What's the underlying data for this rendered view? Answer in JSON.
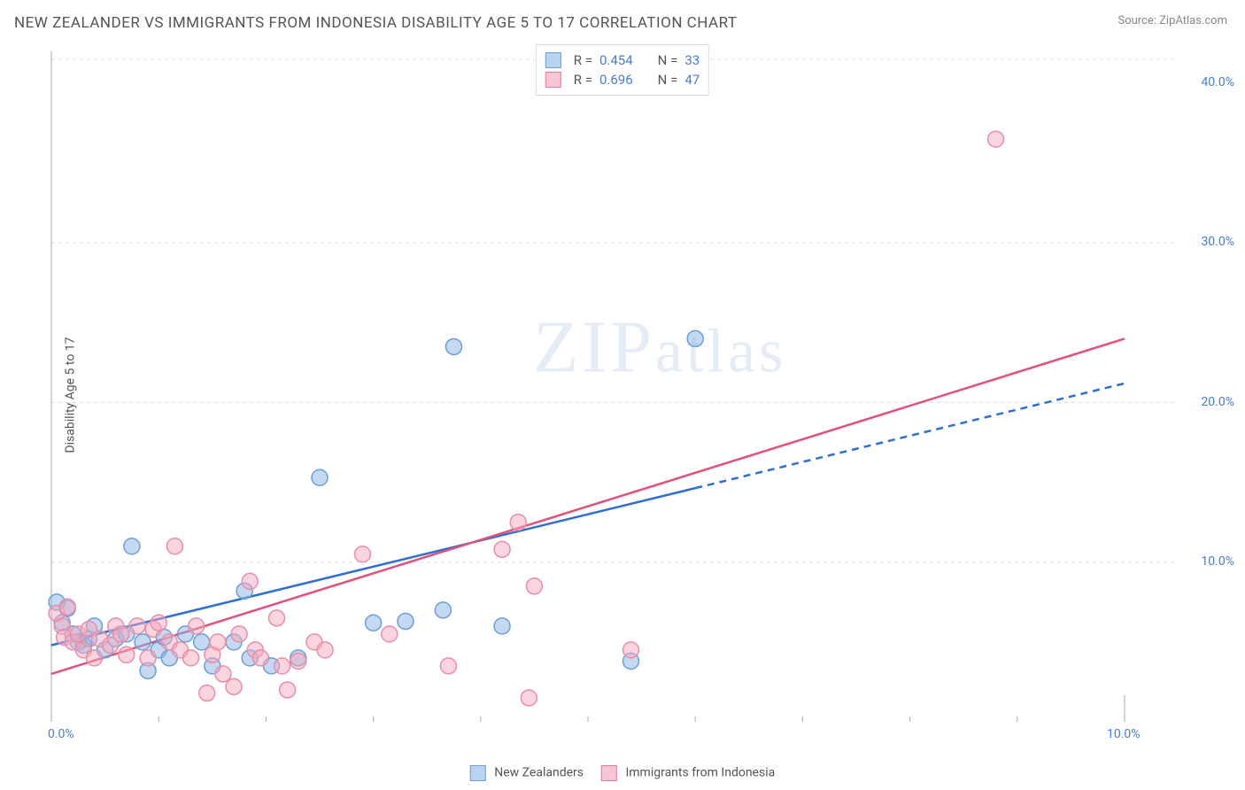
{
  "title": "NEW ZEALANDER VS IMMIGRANTS FROM INDONESIA DISABILITY AGE 5 TO 17 CORRELATION CHART",
  "source": "Source: ZipAtlas.com",
  "ylabel": "Disability Age 5 to 17",
  "watermark": "ZIPatlas",
  "chart": {
    "type": "scatter-with-regression",
    "background_color": "#ffffff",
    "grid_color": "#e0e0e0",
    "axis_color": "#aaaaaa",
    "xlim": [
      0,
      10
    ],
    "ylim": [
      0,
      42
    ],
    "xtick_labels": [
      "0.0%",
      "10.0%"
    ],
    "xtick_positions": [
      0,
      10
    ],
    "ytick_labels": [
      "10.0%",
      "20.0%",
      "30.0%",
      "40.0%"
    ],
    "ytick_positions": [
      10,
      20,
      30,
      40
    ],
    "grid_y_positions": [
      10,
      20,
      30,
      41.5
    ],
    "point_radius": 9,
    "point_stroke_width": 1.5,
    "series": [
      {
        "key": "nz",
        "label": "New Zealanders",
        "fill_color": "rgba(140, 180, 230, 0.5)",
        "stroke_color": "#6a9fd8",
        "swatch_fill": "#b9d4f0",
        "swatch_border": "#6a9fd8",
        "line_color": "#2f6fd0",
        "line_width": 2.5,
        "line_solid_end_x": 6.0,
        "line_dashed": true,
        "regression": {
          "x1": 0,
          "y1": 4.8,
          "x2": 10,
          "y2": 21.2
        },
        "R_label": "R =",
        "R": "0.454",
        "N_label": "N =",
        "N": "33",
        "points": [
          {
            "x": 0.05,
            "y": 7.5
          },
          {
            "x": 0.1,
            "y": 6.2
          },
          {
            "x": 0.15,
            "y": 7.1
          },
          {
            "x": 0.2,
            "y": 5.5
          },
          {
            "x": 0.25,
            "y": 5.0
          },
          {
            "x": 0.3,
            "y": 4.8
          },
          {
            "x": 0.35,
            "y": 5.2
          },
          {
            "x": 0.4,
            "y": 6.0
          },
          {
            "x": 0.5,
            "y": 4.5
          },
          {
            "x": 0.6,
            "y": 5.2
          },
          {
            "x": 0.7,
            "y": 5.5
          },
          {
            "x": 0.75,
            "y": 11.0
          },
          {
            "x": 0.85,
            "y": 5.0
          },
          {
            "x": 0.9,
            "y": 3.2
          },
          {
            "x": 1.0,
            "y": 4.5
          },
          {
            "x": 1.05,
            "y": 5.3
          },
          {
            "x": 1.1,
            "y": 4.0
          },
          {
            "x": 1.25,
            "y": 5.5
          },
          {
            "x": 1.4,
            "y": 5.0
          },
          {
            "x": 1.5,
            "y": 3.5
          },
          {
            "x": 1.7,
            "y": 5.0
          },
          {
            "x": 1.8,
            "y": 8.2
          },
          {
            "x": 1.85,
            "y": 4.0
          },
          {
            "x": 2.05,
            "y": 3.5
          },
          {
            "x": 2.3,
            "y": 4.0
          },
          {
            "x": 2.5,
            "y": 15.3
          },
          {
            "x": 3.0,
            "y": 6.2
          },
          {
            "x": 3.3,
            "y": 6.3
          },
          {
            "x": 3.65,
            "y": 7.0
          },
          {
            "x": 3.75,
            "y": 23.5
          },
          {
            "x": 4.2,
            "y": 6.0
          },
          {
            "x": 5.4,
            "y": 3.8
          },
          {
            "x": 6.0,
            "y": 24.0
          }
        ]
      },
      {
        "key": "indo",
        "label": "Immigrants from Indonesia",
        "fill_color": "rgba(245, 170, 190, 0.5)",
        "stroke_color": "#e78fa8",
        "swatch_fill": "#f7c5d3",
        "swatch_border": "#e57a98",
        "line_color": "#e0527a",
        "line_width": 2.5,
        "line_solid_end_x": 10,
        "line_dashed": false,
        "regression": {
          "x1": 0,
          "y1": 3.0,
          "x2": 10,
          "y2": 24.0
        },
        "R_label": "R =",
        "R": "0.696",
        "N_label": "N =",
        "N": "47",
        "points": [
          {
            "x": 0.05,
            "y": 6.8
          },
          {
            "x": 0.1,
            "y": 6.0
          },
          {
            "x": 0.12,
            "y": 5.3
          },
          {
            "x": 0.15,
            "y": 7.2
          },
          {
            "x": 0.2,
            "y": 5.0
          },
          {
            "x": 0.25,
            "y": 5.5
          },
          {
            "x": 0.3,
            "y": 4.5
          },
          {
            "x": 0.35,
            "y": 5.8
          },
          {
            "x": 0.4,
            "y": 4.0
          },
          {
            "x": 0.45,
            "y": 5.2
          },
          {
            "x": 0.55,
            "y": 4.8
          },
          {
            "x": 0.6,
            "y": 6.0
          },
          {
            "x": 0.65,
            "y": 5.5
          },
          {
            "x": 0.7,
            "y": 4.2
          },
          {
            "x": 0.8,
            "y": 6.0
          },
          {
            "x": 0.9,
            "y": 4.0
          },
          {
            "x": 0.95,
            "y": 5.8
          },
          {
            "x": 1.0,
            "y": 6.2
          },
          {
            "x": 1.1,
            "y": 5.0
          },
          {
            "x": 1.15,
            "y": 11.0
          },
          {
            "x": 1.2,
            "y": 4.5
          },
          {
            "x": 1.3,
            "y": 4.0
          },
          {
            "x": 1.35,
            "y": 6.0
          },
          {
            "x": 1.45,
            "y": 1.8
          },
          {
            "x": 1.5,
            "y": 4.2
          },
          {
            "x": 1.55,
            "y": 5.0
          },
          {
            "x": 1.6,
            "y": 3.0
          },
          {
            "x": 1.7,
            "y": 2.2
          },
          {
            "x": 1.75,
            "y": 5.5
          },
          {
            "x": 1.85,
            "y": 8.8
          },
          {
            "x": 1.9,
            "y": 4.5
          },
          {
            "x": 1.95,
            "y": 4.0
          },
          {
            "x": 2.1,
            "y": 6.5
          },
          {
            "x": 2.15,
            "y": 3.5
          },
          {
            "x": 2.2,
            "y": 2.0
          },
          {
            "x": 2.3,
            "y": 3.8
          },
          {
            "x": 2.45,
            "y": 5.0
          },
          {
            "x": 2.55,
            "y": 4.5
          },
          {
            "x": 2.9,
            "y": 10.5
          },
          {
            "x": 3.15,
            "y": 5.5
          },
          {
            "x": 3.7,
            "y": 3.5
          },
          {
            "x": 4.2,
            "y": 10.8
          },
          {
            "x": 4.35,
            "y": 12.5
          },
          {
            "x": 4.45,
            "y": 1.5
          },
          {
            "x": 4.5,
            "y": 8.5
          },
          {
            "x": 5.4,
            "y": 4.5
          },
          {
            "x": 8.8,
            "y": 36.5
          }
        ]
      }
    ]
  }
}
